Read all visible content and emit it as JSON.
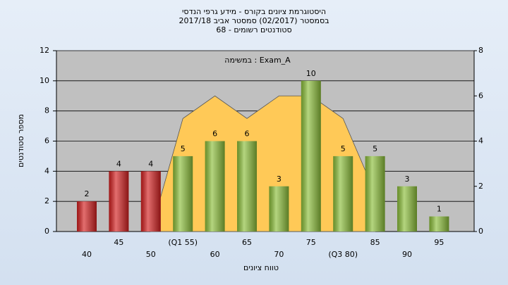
{
  "chart_data": {
    "type": "bar",
    "title": "היסטוגרמת ציונים בקורס - מידע גרפי הנדסי",
    "subtitle": "בסמסטר (02/2017) סמסטר אביב 2017/18",
    "subtitle2": "סטודנטים רשומים - 68",
    "annotation": "במשימה : Exam_A",
    "ylabel": "מספר סטודנטים",
    "xlabel": "טווח ציונים",
    "categories": [
      "40",
      "45",
      "50",
      "(Q1 55)",
      "60",
      "65",
      "70",
      "75",
      "(Q3 80)",
      "85",
      "90",
      "95"
    ],
    "series": [
      {
        "values": [
          2,
          4,
          4,
          5,
          6,
          6,
          3,
          10,
          5,
          5,
          3,
          1
        ],
        "colors": [
          "#d42020",
          "#d42020",
          "#d42020",
          "#8cbf3a",
          "#8cbf3a",
          "#8cbf3a",
          "#8cbf3a",
          "#8cbf3a",
          "#8cbf3a",
          "#8cbf3a",
          "#8cbf3a",
          "#8cbf3a"
        ]
      },
      {
        "type": "area",
        "axis": "y2",
        "color": "#ffc957",
        "values": [
          null,
          null,
          0,
          5,
          6,
          5,
          6,
          6,
          5,
          1.7,
          null,
          null
        ]
      }
    ],
    "ylim": [
      0,
      12
    ],
    "yticks": [
      0,
      2,
      4,
      6,
      8,
      10,
      12
    ],
    "y2lim": [
      0,
      8
    ],
    "y2ticks": [
      0,
      2,
      4,
      6,
      8
    ],
    "grid": true
  }
}
